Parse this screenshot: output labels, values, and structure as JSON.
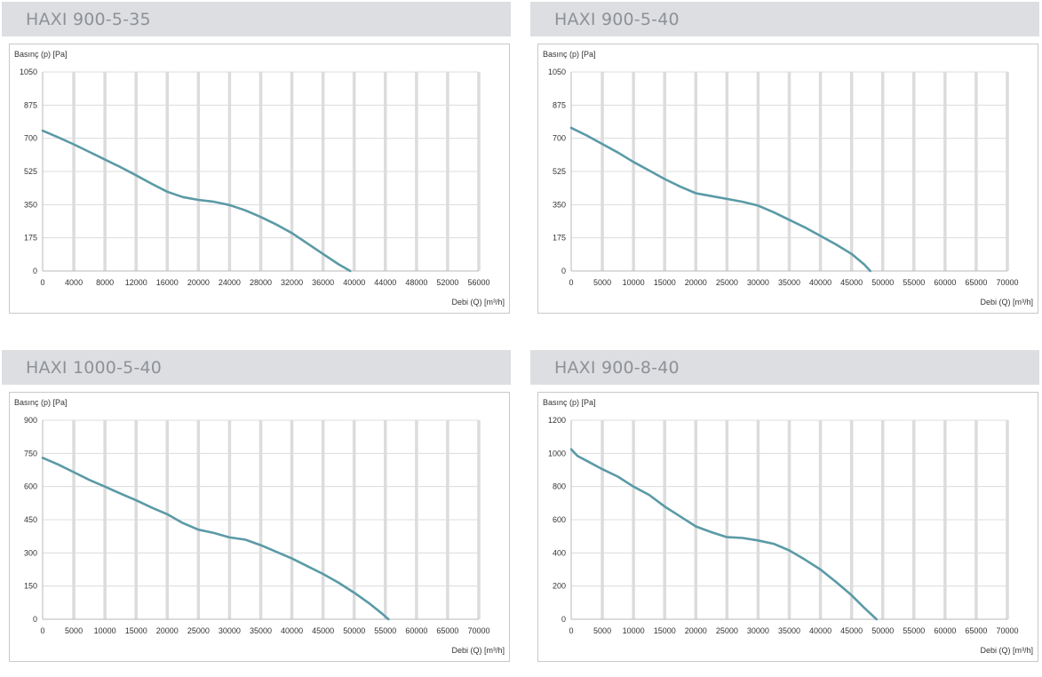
{
  "colors": {
    "curve": "#5a9aa6",
    "grid": "#dcdcdc",
    "header_bg": "#dcdee1",
    "title": "#8e9196"
  },
  "chart_data": [
    {
      "type": "line",
      "title": "HAXI 900-5-35",
      "ylabel": "Basınç (p) [Pa]",
      "xlabel": "Debi (Q) [m³/h]",
      "xlim": [
        0,
        56000
      ],
      "ylim": [
        0,
        1050
      ],
      "xticks": [
        0,
        4000,
        8000,
        12000,
        16000,
        20000,
        24000,
        28000,
        32000,
        36000,
        40000,
        44000,
        48000,
        52000,
        56000
      ],
      "yticks": [
        0,
        175,
        350,
        525,
        700,
        875,
        1050
      ],
      "grid": true,
      "series": [
        {
          "x": [
            0,
            2000,
            4000,
            6000,
            8000,
            10000,
            12000,
            14000,
            16000,
            18000,
            20000,
            22000,
            24000,
            26000,
            28000,
            30000,
            32000,
            34000,
            36000,
            38000,
            39500
          ],
          "y": [
            740,
            705,
            668,
            628,
            588,
            548,
            505,
            460,
            418,
            390,
            375,
            365,
            348,
            320,
            285,
            245,
            200,
            145,
            90,
            35,
            0
          ]
        }
      ]
    },
    {
      "type": "line",
      "title": "HAXI 900-5-40",
      "ylabel": "Basınç (p) [Pa]",
      "xlabel": "Debi (Q) [m³/h]",
      "xlim": [
        0,
        70000
      ],
      "ylim": [
        0,
        1050
      ],
      "xticks": [
        0,
        5000,
        10000,
        15000,
        20000,
        25000,
        30000,
        35000,
        40000,
        45000,
        50000,
        55000,
        60000,
        65000,
        70000
      ],
      "yticks": [
        0,
        175,
        350,
        525,
        700,
        875,
        1050
      ],
      "grid": true,
      "series": [
        {
          "x": [
            0,
            2500,
            5000,
            7500,
            10000,
            12500,
            15000,
            17500,
            20000,
            22500,
            25000,
            27500,
            30000,
            32500,
            35000,
            37500,
            40000,
            42500,
            45000,
            47000,
            48000
          ],
          "y": [
            755,
            715,
            670,
            625,
            575,
            530,
            485,
            445,
            410,
            395,
            380,
            365,
            345,
            310,
            270,
            230,
            185,
            140,
            90,
            35,
            0
          ]
        }
      ]
    },
    {
      "type": "line",
      "title": "HAXI 1000-5-40",
      "ylabel": "Basınç (p) [Pa]",
      "xlabel": "Debi (Q) [m³/h]",
      "xlim": [
        0,
        70000
      ],
      "ylim": [
        0,
        900
      ],
      "xticks": [
        0,
        5000,
        10000,
        15000,
        20000,
        25000,
        30000,
        35000,
        40000,
        45000,
        50000,
        55000,
        60000,
        65000,
        70000
      ],
      "yticks": [
        0,
        150,
        300,
        450,
        600,
        750,
        900
      ],
      "grid": true,
      "series": [
        {
          "x": [
            0,
            2500,
            5000,
            7500,
            10000,
            12500,
            15000,
            17500,
            20000,
            22500,
            25000,
            27500,
            30000,
            32500,
            35000,
            37500,
            40000,
            42500,
            45000,
            47500,
            50000,
            52500,
            54500,
            55500
          ],
          "y": [
            730,
            700,
            665,
            630,
            600,
            568,
            538,
            505,
            475,
            435,
            405,
            390,
            370,
            360,
            335,
            305,
            275,
            240,
            205,
            165,
            120,
            70,
            25,
            0
          ]
        }
      ]
    },
    {
      "type": "line",
      "title": "HAXI 900-8-40",
      "ylabel": "Basınç (p) [Pa]",
      "xlabel": "Debi (Q) [m³/h]",
      "xlim": [
        0,
        70000
      ],
      "ylim": [
        0,
        1200
      ],
      "xticks": [
        0,
        5000,
        10000,
        15000,
        20000,
        25000,
        30000,
        35000,
        40000,
        45000,
        50000,
        55000,
        60000,
        65000,
        70000
      ],
      "yticks": [
        0,
        200,
        400,
        600,
        800,
        1000,
        1200
      ],
      "grid": true,
      "series": [
        {
          "x": [
            0,
            1000,
            2500,
            5000,
            7500,
            10000,
            12500,
            15000,
            17500,
            20000,
            22500,
            25000,
            27500,
            30000,
            32500,
            35000,
            37500,
            40000,
            42500,
            45000,
            47000,
            49000
          ],
          "y": [
            1025,
            985,
            955,
            905,
            860,
            800,
            750,
            680,
            620,
            560,
            525,
            495,
            490,
            475,
            455,
            415,
            360,
            300,
            225,
            145,
            70,
            0
          ]
        }
      ]
    }
  ]
}
